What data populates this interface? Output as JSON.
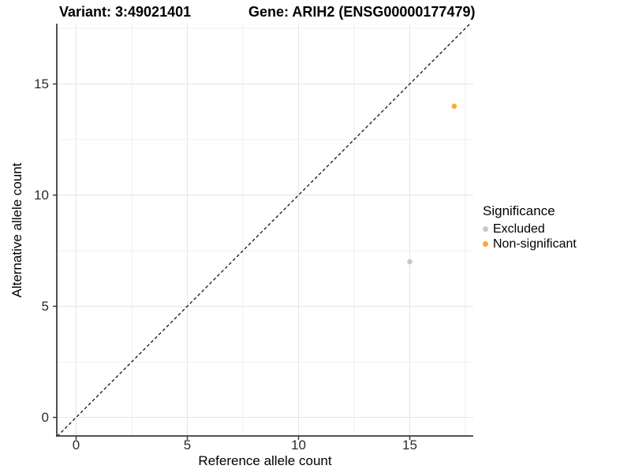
{
  "chart_data": {
    "type": "scatter",
    "titles": {
      "left": "Variant: 3:49021401",
      "right": "Gene: ARIH2 (ENSG00000177479)"
    },
    "xlabel": "Reference allele count",
    "ylabel": "Alternative allele count",
    "x_ticks": [
      0,
      5,
      10,
      15
    ],
    "y_ticks": [
      0,
      5,
      10,
      15
    ],
    "x_range": [
      -0.87,
      17.87
    ],
    "y_range": [
      -0.85,
      17.85
    ],
    "grid": {
      "minor_step": 2.5,
      "major_step": 5,
      "major_color": "#e4e4e4",
      "minor_color": "#efefef"
    },
    "reference_line": {
      "type": "identity y=x",
      "style": "dashed",
      "color": "#111111"
    },
    "legend": {
      "title": "Significance",
      "position": "right"
    },
    "series": [
      {
        "name": "Excluded",
        "color": "#c8c8c8",
        "points": [
          [
            15,
            7
          ]
        ]
      },
      {
        "name": "Non-significant",
        "color": "#ffa733",
        "points": [
          [
            17,
            14
          ]
        ]
      }
    ],
    "axis_color": "#3c3c3c",
    "tick_text_color": "#2b2b2b"
  }
}
